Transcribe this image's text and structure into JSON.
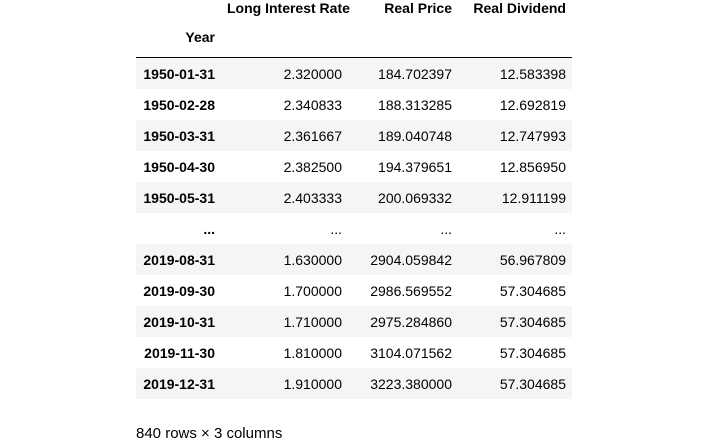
{
  "table": {
    "index_name": "Year",
    "columns": [
      "Long Interest Rate",
      "Real Price",
      "Real Dividend"
    ],
    "rows": [
      {
        "index": "1950-01-31",
        "values": [
          "2.320000",
          "184.702397",
          "12.583398"
        ]
      },
      {
        "index": "1950-02-28",
        "values": [
          "2.340833",
          "188.313285",
          "12.692819"
        ]
      },
      {
        "index": "1950-03-31",
        "values": [
          "2.361667",
          "189.040748",
          "12.747993"
        ]
      },
      {
        "index": "1950-04-30",
        "values": [
          "2.382500",
          "194.379651",
          "12.856950"
        ]
      },
      {
        "index": "1950-05-31",
        "values": [
          "2.403333",
          "200.069332",
          "12.911199"
        ]
      },
      {
        "index": "...",
        "values": [
          "...",
          "...",
          "..."
        ]
      },
      {
        "index": "2019-08-31",
        "values": [
          "1.630000",
          "2904.059842",
          "56.967809"
        ]
      },
      {
        "index": "2019-09-30",
        "values": [
          "1.700000",
          "2986.569552",
          "57.304685"
        ]
      },
      {
        "index": "2019-10-31",
        "values": [
          "1.710000",
          "2975.284860",
          "57.304685"
        ]
      },
      {
        "index": "2019-11-30",
        "values": [
          "1.810000",
          "3104.071562",
          "57.304685"
        ]
      },
      {
        "index": "2019-12-31",
        "values": [
          "1.910000",
          "3223.380000",
          "57.304685"
        ]
      }
    ]
  },
  "footer": {
    "shape_text": "840 rows × 3 columns"
  }
}
